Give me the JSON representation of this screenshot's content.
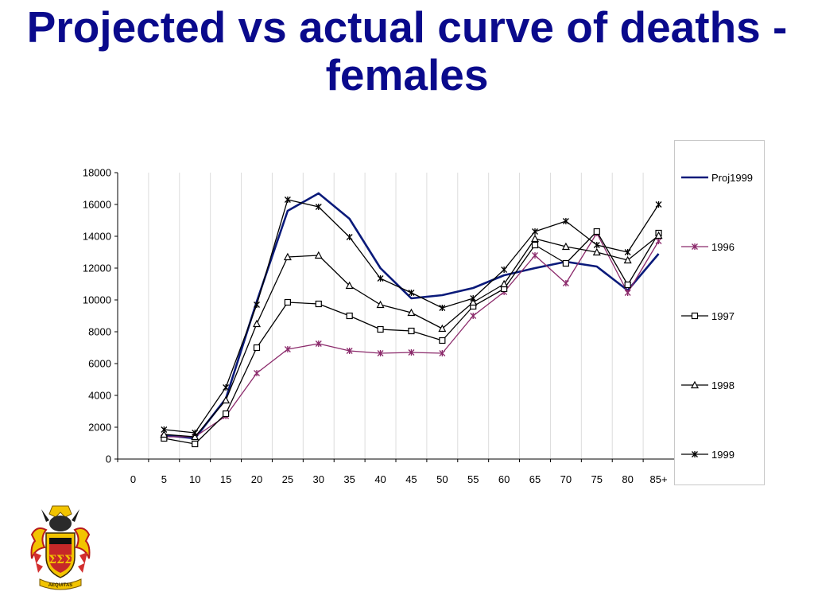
{
  "slide": {
    "title": "Projected vs actual curve of deaths - females"
  },
  "colors": {
    "title": "#0a0a8c",
    "proj1999": "#0a1a7a",
    "s1996": "#8b2a6b",
    "others": "#000000"
  },
  "crest": {
    "motto": "AEQUITAS",
    "shield_letters": "ΣΣΣ"
  },
  "chart_data": {
    "type": "line",
    "x": [
      "0",
      "5",
      "10",
      "15",
      "20",
      "25",
      "30",
      "35",
      "40",
      "45",
      "50",
      "55",
      "60",
      "65",
      "70",
      "75",
      "80",
      "85+"
    ],
    "ylim": [
      0,
      18000
    ],
    "yticks": [
      0,
      2000,
      4000,
      6000,
      8000,
      10000,
      12000,
      14000,
      16000,
      18000
    ],
    "grid": "vertical",
    "legend": "right",
    "series": [
      {
        "name": "Proj1999",
        "marker": "none",
        "color": "#0a1a7a",
        "values": [
          null,
          1500,
          1300,
          3800,
          9900,
          15600,
          16700,
          15100,
          12000,
          10100,
          10300,
          10750,
          11550,
          12000,
          12400,
          12100,
          10600,
          12900
        ]
      },
      {
        "name": "1996",
        "marker": "asterisk",
        "color": "#8b2a6b",
        "values": [
          null,
          1400,
          1400,
          2700,
          5400,
          6900,
          7250,
          6800,
          6650,
          6700,
          6650,
          9000,
          10500,
          12800,
          11050,
          14200,
          10450,
          13700
        ]
      },
      {
        "name": "1997",
        "marker": "square",
        "color": "#000000",
        "values": [
          null,
          1300,
          950,
          2850,
          7000,
          9850,
          9750,
          9000,
          8150,
          8050,
          7450,
          9600,
          10700,
          13450,
          12300,
          14300,
          10950,
          14200
        ]
      },
      {
        "name": "1998",
        "marker": "triangle",
        "color": "#000000",
        "values": [
          null,
          1550,
          1400,
          3700,
          8500,
          12700,
          12800,
          10900,
          9700,
          9200,
          8200,
          9850,
          11000,
          13850,
          13350,
          13000,
          12500,
          14050
        ]
      },
      {
        "name": "1999",
        "marker": "star",
        "color": "#000000",
        "values": [
          null,
          1850,
          1650,
          4500,
          9700,
          16300,
          15850,
          13950,
          11350,
          10450,
          9500,
          10100,
          11900,
          14300,
          14950,
          13450,
          13000,
          16000
        ]
      }
    ]
  }
}
